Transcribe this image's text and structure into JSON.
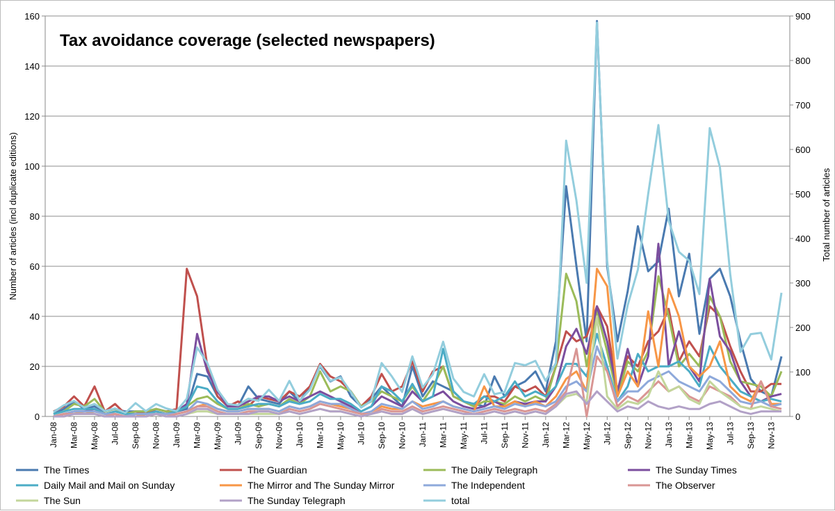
{
  "chart_data": {
    "type": "line",
    "title": "Tax avoidance coverage (selected newspapers)",
    "ylabel": "Number of articles (incl duplicate editions)",
    "y2label": "Total number of articles",
    "ylim": [
      0,
      160
    ],
    "y2lim": [
      0,
      900
    ],
    "yticks": [
      0,
      20,
      40,
      60,
      80,
      100,
      120,
      140,
      160
    ],
    "y2ticks": [
      0,
      100,
      200,
      300,
      400,
      500,
      600,
      700,
      800,
      900
    ],
    "grid": true,
    "legend_position": "bottom",
    "months": [
      "Jan-08",
      "Feb-08",
      "Mar-08",
      "Apr-08",
      "May-08",
      "Jun-08",
      "Jul-08",
      "Aug-08",
      "Sep-08",
      "Oct-08",
      "Nov-08",
      "Dec-08",
      "Jan-09",
      "Feb-09",
      "Mar-09",
      "Apr-09",
      "May-09",
      "Jun-09",
      "Jul-09",
      "Aug-09",
      "Sep-09",
      "Oct-09",
      "Nov-09",
      "Dec-09",
      "Jan-10",
      "Feb-10",
      "Mar-10",
      "Apr-10",
      "May-10",
      "Jun-10",
      "Jul-10",
      "Aug-10",
      "Sep-10",
      "Oct-10",
      "Nov-10",
      "Dec-10",
      "Jan-11",
      "Feb-11",
      "Mar-11",
      "Apr-11",
      "May-11",
      "Jun-11",
      "Jul-11",
      "Aug-11",
      "Sep-11",
      "Oct-11",
      "Nov-11",
      "Dec-11",
      "Jan-12",
      "Feb-12",
      "Mar-12",
      "Apr-12",
      "May-12",
      "Jun-12",
      "Jul-12",
      "Aug-12",
      "Sep-12",
      "Oct-12",
      "Nov-12",
      "Dec-12",
      "Jan-13",
      "Feb-13",
      "Mar-13",
      "Apr-13",
      "May-13",
      "Jun-13",
      "Jul-13",
      "Aug-13",
      "Sep-13",
      "Oct-13",
      "Nov-13",
      "Dec-13"
    ],
    "x_tick_labels": [
      "Jan-08",
      "Mar-08",
      "May-08",
      "Jul-08",
      "Sep-08",
      "Nov-08",
      "Jan-09",
      "Mar-09",
      "May-09",
      "Jul-09",
      "Sep-09",
      "Nov-09",
      "Jan-10",
      "Mar-10",
      "May-10",
      "Jul-10",
      "Sep-10",
      "Nov-10",
      "Jan-11",
      "Mar-11",
      "May-11",
      "Jul-11",
      "Sep-11",
      "Nov-11",
      "Jan-12",
      "Mar-12",
      "May-12",
      "Jul-12",
      "Sep-12",
      "Nov-12",
      "Jan-13",
      "Mar-13",
      "May-13",
      "Jul-13",
      "Sep-13",
      "Nov-13"
    ],
    "series": [
      {
        "name": "The Times",
        "color": "#4a7ab0",
        "axis": "left",
        "values": [
          1,
          3,
          6,
          3,
          4,
          2,
          3,
          2,
          2,
          2,
          3,
          2,
          2,
          3,
          17,
          16,
          8,
          4,
          4,
          12,
          7,
          6,
          5,
          10,
          6,
          12,
          20,
          14,
          16,
          8,
          4,
          7,
          12,
          8,
          4,
          20,
          8,
          14,
          12,
          10,
          6,
          5,
          4,
          16,
          8,
          12,
          14,
          18,
          10,
          30,
          92,
          60,
          30,
          158,
          60,
          30,
          50,
          76,
          58,
          62,
          83,
          48,
          65,
          33,
          55,
          59,
          48,
          30,
          15,
          10,
          8,
          24
        ]
      },
      {
        "name": "The Guardian",
        "color": "#c0504d",
        "axis": "left",
        "values": [
          2,
          4,
          8,
          4,
          12,
          2,
          5,
          1,
          2,
          1,
          3,
          2,
          3,
          59,
          48,
          20,
          8,
          4,
          6,
          4,
          8,
          7,
          6,
          10,
          8,
          12,
          21,
          16,
          14,
          10,
          4,
          8,
          17,
          10,
          12,
          22,
          10,
          18,
          20,
          8,
          6,
          4,
          8,
          8,
          6,
          12,
          10,
          12,
          8,
          20,
          34,
          30,
          32,
          44,
          36,
          10,
          24,
          20,
          30,
          34,
          43,
          22,
          30,
          24,
          44,
          40,
          28,
          18,
          10,
          10,
          13,
          13
        ]
      },
      {
        "name": "The Daily Telegraph",
        "color": "#9bbb59",
        "axis": "left",
        "values": [
          1,
          2,
          5,
          4,
          7,
          2,
          3,
          1,
          2,
          2,
          3,
          2,
          2,
          4,
          7,
          8,
          5,
          3,
          3,
          5,
          4,
          5,
          4,
          7,
          5,
          8,
          18,
          10,
          12,
          10,
          4,
          6,
          10,
          8,
          6,
          12,
          6,
          12,
          20,
          8,
          6,
          4,
          6,
          6,
          5,
          8,
          6,
          8,
          6,
          20,
          57,
          46,
          20,
          42,
          26,
          8,
          22,
          18,
          26,
          56,
          40,
          20,
          25,
          20,
          48,
          40,
          22,
          14,
          13,
          12,
          8,
          18
        ]
      },
      {
        "name": "The Sunday Times",
        "color": "#7b4e9e",
        "axis": "left",
        "values": [
          0,
          1,
          2,
          2,
          3,
          1,
          1,
          0,
          1,
          1,
          2,
          1,
          2,
          5,
          33,
          18,
          10,
          4,
          4,
          6,
          8,
          8,
          6,
          8,
          6,
          8,
          10,
          8,
          6,
          4,
          2,
          4,
          8,
          6,
          4,
          10,
          6,
          8,
          10,
          6,
          4,
          3,
          4,
          6,
          4,
          6,
          5,
          6,
          6,
          12,
          28,
          35,
          25,
          44,
          30,
          10,
          27,
          12,
          24,
          69,
          20,
          34,
          20,
          14,
          55,
          32,
          26,
          14,
          8,
          6,
          8,
          9
        ]
      },
      {
        "name": "Daily Mail and Mail on Sunday",
        "color": "#4bacc6",
        "axis": "left",
        "values": [
          1,
          2,
          3,
          3,
          3,
          1,
          2,
          1,
          1,
          1,
          2,
          1,
          2,
          4,
          12,
          11,
          6,
          3,
          3,
          4,
          5,
          5,
          4,
          6,
          5,
          6,
          9,
          7,
          7,
          5,
          2,
          4,
          12,
          10,
          6,
          13,
          6,
          8,
          27,
          10,
          6,
          5,
          8,
          6,
          8,
          14,
          8,
          10,
          8,
          12,
          21,
          21,
          16,
          33,
          20,
          6,
          12,
          25,
          18,
          20,
          20,
          22,
          18,
          12,
          28,
          20,
          15,
          10,
          8,
          6,
          7,
          6
        ]
      },
      {
        "name": "The Mirror and The Sunday Mirror",
        "color": "#f79646",
        "axis": "left",
        "values": [
          0,
          1,
          2,
          1,
          2,
          1,
          1,
          0,
          1,
          0,
          1,
          1,
          1,
          2,
          4,
          5,
          3,
          2,
          2,
          3,
          3,
          3,
          2,
          4,
          3,
          4,
          6,
          5,
          4,
          3,
          1,
          2,
          4,
          3,
          3,
          6,
          4,
          5,
          6,
          4,
          3,
          2,
          12,
          4,
          4,
          6,
          4,
          6,
          4,
          8,
          15,
          18,
          10,
          59,
          52,
          8,
          18,
          12,
          42,
          20,
          51,
          40,
          20,
          16,
          20,
          30,
          12,
          8,
          6,
          14,
          5,
          5
        ]
      },
      {
        "name": "The Independent",
        "color": "#8ea9db",
        "axis": "left",
        "values": [
          0,
          1,
          2,
          2,
          2,
          1,
          1,
          0,
          1,
          1,
          1,
          1,
          1,
          2,
          6,
          5,
          3,
          2,
          2,
          3,
          3,
          3,
          2,
          4,
          3,
          4,
          6,
          5,
          5,
          3,
          1,
          2,
          5,
          4,
          3,
          6,
          3,
          4,
          6,
          4,
          3,
          2,
          3,
          4,
          3,
          5,
          4,
          5,
          4,
          6,
          12,
          14,
          10,
          28,
          18,
          6,
          10,
          10,
          14,
          16,
          18,
          14,
          12,
          10,
          16,
          14,
          10,
          6,
          5,
          6,
          4,
          5
        ]
      },
      {
        "name": "The Observer",
        "color": "#d99694",
        "axis": "left",
        "values": [
          0,
          1,
          1,
          1,
          1,
          0,
          1,
          0,
          0,
          0,
          1,
          0,
          1,
          2,
          4,
          4,
          2,
          1,
          1,
          2,
          2,
          2,
          1,
          3,
          2,
          3,
          5,
          4,
          3,
          2,
          1,
          1,
          3,
          2,
          2,
          4,
          2,
          3,
          4,
          3,
          2,
          1,
          2,
          3,
          2,
          3,
          2,
          3,
          2,
          5,
          10,
          27,
          0,
          24,
          18,
          4,
          8,
          6,
          10,
          14,
          10,
          12,
          8,
          6,
          12,
          10,
          8,
          4,
          3,
          14,
          4,
          3
        ]
      },
      {
        "name": "The Sun",
        "color": "#c3d69b",
        "axis": "left",
        "values": [
          0,
          0,
          1,
          1,
          1,
          0,
          0,
          0,
          0,
          0,
          1,
          0,
          0,
          1,
          2,
          2,
          1,
          1,
          1,
          1,
          1,
          1,
          1,
          2,
          1,
          2,
          3,
          2,
          2,
          1,
          0,
          1,
          2,
          1,
          1,
          3,
          1,
          2,
          3,
          2,
          1,
          1,
          1,
          2,
          1,
          2,
          1,
          2,
          1,
          4,
          8,
          9,
          6,
          40,
          8,
          3,
          6,
          5,
          8,
          18,
          10,
          12,
          7,
          5,
          14,
          10,
          7,
          4,
          3,
          4,
          3,
          2
        ]
      },
      {
        "name": "The Sunday Telegraph",
        "color": "#b2a1c7",
        "axis": "left",
        "values": [
          0,
          0,
          1,
          1,
          1,
          0,
          0,
          0,
          0,
          0,
          1,
          0,
          0,
          1,
          3,
          3,
          1,
          1,
          1,
          1,
          2,
          2,
          1,
          2,
          1,
          2,
          3,
          2,
          2,
          1,
          0,
          1,
          2,
          1,
          1,
          3,
          1,
          2,
          3,
          2,
          1,
          1,
          1,
          2,
          1,
          2,
          1,
          2,
          1,
          4,
          9,
          10,
          5,
          10,
          6,
          2,
          4,
          3,
          6,
          4,
          3,
          4,
          3,
          3,
          5,
          6,
          4,
          2,
          1,
          2,
          2,
          2
        ]
      },
      {
        "name": "total",
        "color": "#93cddd",
        "axis": "right",
        "values": [
          10,
          25,
          35,
          20,
          28,
          12,
          18,
          8,
          30,
          12,
          28,
          18,
          12,
          40,
          155,
          120,
          60,
          28,
          25,
          40,
          35,
          60,
          35,
          80,
          35,
          60,
          115,
          80,
          88,
          55,
          20,
          35,
          120,
          90,
          55,
          135,
          65,
          95,
          168,
          85,
          55,
          45,
          95,
          50,
          55,
          120,
          115,
          125,
          80,
          120,
          620,
          485,
          300,
          885,
          350,
          130,
          250,
          330,
          500,
          655,
          440,
          370,
          350,
          275,
          648,
          560,
          320,
          145,
          185,
          188,
          128,
          278
        ]
      }
    ]
  }
}
